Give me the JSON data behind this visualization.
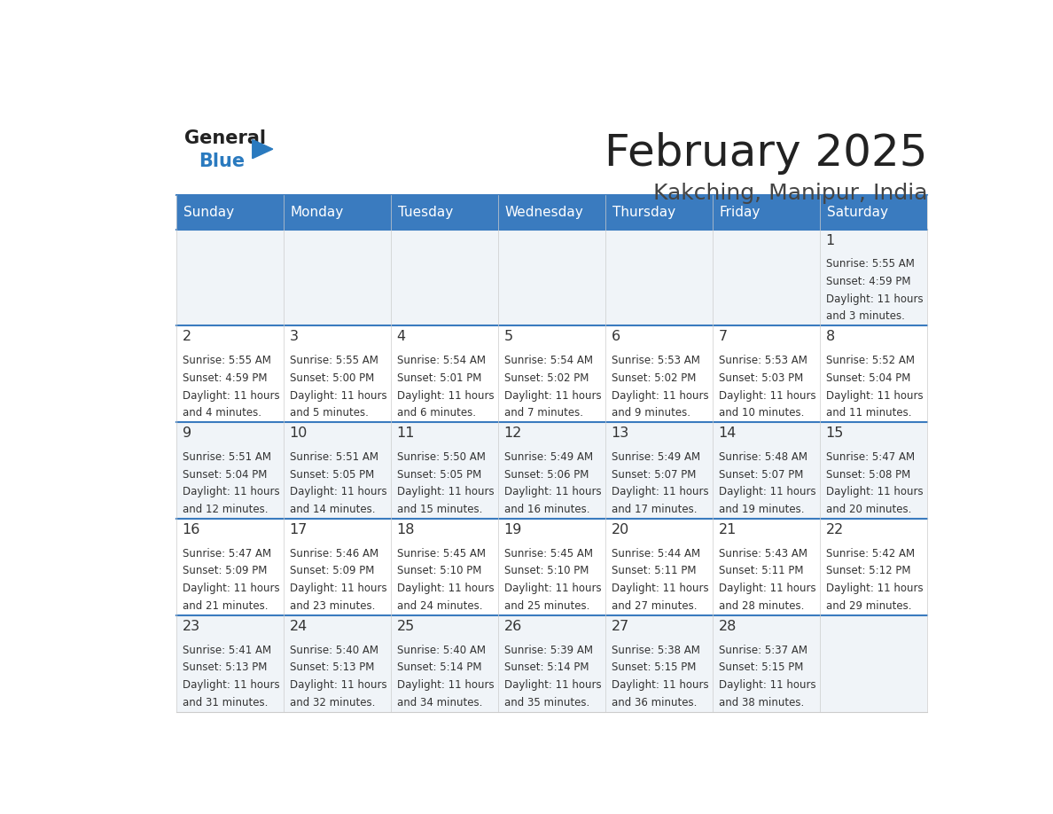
{
  "title": "February 2025",
  "subtitle": "Kakching, Manipur, India",
  "header_bg": "#3a7bbf",
  "header_text": "#ffffff",
  "cell_bg_light": "#f0f4f8",
  "cell_bg_white": "#ffffff",
  "line_color": "#3a7bbf",
  "days_of_week": [
    "Sunday",
    "Monday",
    "Tuesday",
    "Wednesday",
    "Thursday",
    "Friday",
    "Saturday"
  ],
  "title_color": "#222222",
  "subtitle_color": "#444444",
  "logo_general_color": "#222222",
  "logo_blue_color": "#2a7abf",
  "calendar": [
    [
      null,
      null,
      null,
      null,
      null,
      null,
      {
        "day": 1,
        "sunrise": "5:55 AM",
        "sunset": "4:59 PM",
        "daylight": "11 hours and 3 minutes."
      }
    ],
    [
      {
        "day": 2,
        "sunrise": "5:55 AM",
        "sunset": "4:59 PM",
        "daylight": "11 hours and 4 minutes."
      },
      {
        "day": 3,
        "sunrise": "5:55 AM",
        "sunset": "5:00 PM",
        "daylight": "11 hours and 5 minutes."
      },
      {
        "day": 4,
        "sunrise": "5:54 AM",
        "sunset": "5:01 PM",
        "daylight": "11 hours and 6 minutes."
      },
      {
        "day": 5,
        "sunrise": "5:54 AM",
        "sunset": "5:02 PM",
        "daylight": "11 hours and 7 minutes."
      },
      {
        "day": 6,
        "sunrise": "5:53 AM",
        "sunset": "5:02 PM",
        "daylight": "11 hours and 9 minutes."
      },
      {
        "day": 7,
        "sunrise": "5:53 AM",
        "sunset": "5:03 PM",
        "daylight": "11 hours and 10 minutes."
      },
      {
        "day": 8,
        "sunrise": "5:52 AM",
        "sunset": "5:04 PM",
        "daylight": "11 hours and 11 minutes."
      }
    ],
    [
      {
        "day": 9,
        "sunrise": "5:51 AM",
        "sunset": "5:04 PM",
        "daylight": "11 hours and 12 minutes."
      },
      {
        "day": 10,
        "sunrise": "5:51 AM",
        "sunset": "5:05 PM",
        "daylight": "11 hours and 14 minutes."
      },
      {
        "day": 11,
        "sunrise": "5:50 AM",
        "sunset": "5:05 PM",
        "daylight": "11 hours and 15 minutes."
      },
      {
        "day": 12,
        "sunrise": "5:49 AM",
        "sunset": "5:06 PM",
        "daylight": "11 hours and 16 minutes."
      },
      {
        "day": 13,
        "sunrise": "5:49 AM",
        "sunset": "5:07 PM",
        "daylight": "11 hours and 17 minutes."
      },
      {
        "day": 14,
        "sunrise": "5:48 AM",
        "sunset": "5:07 PM",
        "daylight": "11 hours and 19 minutes."
      },
      {
        "day": 15,
        "sunrise": "5:47 AM",
        "sunset": "5:08 PM",
        "daylight": "11 hours and 20 minutes."
      }
    ],
    [
      {
        "day": 16,
        "sunrise": "5:47 AM",
        "sunset": "5:09 PM",
        "daylight": "11 hours and 21 minutes."
      },
      {
        "day": 17,
        "sunrise": "5:46 AM",
        "sunset": "5:09 PM",
        "daylight": "11 hours and 23 minutes."
      },
      {
        "day": 18,
        "sunrise": "5:45 AM",
        "sunset": "5:10 PM",
        "daylight": "11 hours and 24 minutes."
      },
      {
        "day": 19,
        "sunrise": "5:45 AM",
        "sunset": "5:10 PM",
        "daylight": "11 hours and 25 minutes."
      },
      {
        "day": 20,
        "sunrise": "5:44 AM",
        "sunset": "5:11 PM",
        "daylight": "11 hours and 27 minutes."
      },
      {
        "day": 21,
        "sunrise": "5:43 AM",
        "sunset": "5:11 PM",
        "daylight": "11 hours and 28 minutes."
      },
      {
        "day": 22,
        "sunrise": "5:42 AM",
        "sunset": "5:12 PM",
        "daylight": "11 hours and 29 minutes."
      }
    ],
    [
      {
        "day": 23,
        "sunrise": "5:41 AM",
        "sunset": "5:13 PM",
        "daylight": "11 hours and 31 minutes."
      },
      {
        "day": 24,
        "sunrise": "5:40 AM",
        "sunset": "5:13 PM",
        "daylight": "11 hours and 32 minutes."
      },
      {
        "day": 25,
        "sunrise": "5:40 AM",
        "sunset": "5:14 PM",
        "daylight": "11 hours and 34 minutes."
      },
      {
        "day": 26,
        "sunrise": "5:39 AM",
        "sunset": "5:14 PM",
        "daylight": "11 hours and 35 minutes."
      },
      {
        "day": 27,
        "sunrise": "5:38 AM",
        "sunset": "5:15 PM",
        "daylight": "11 hours and 36 minutes."
      },
      {
        "day": 28,
        "sunrise": "5:37 AM",
        "sunset": "5:15 PM",
        "daylight": "11 hours and 38 minutes."
      },
      null
    ]
  ]
}
